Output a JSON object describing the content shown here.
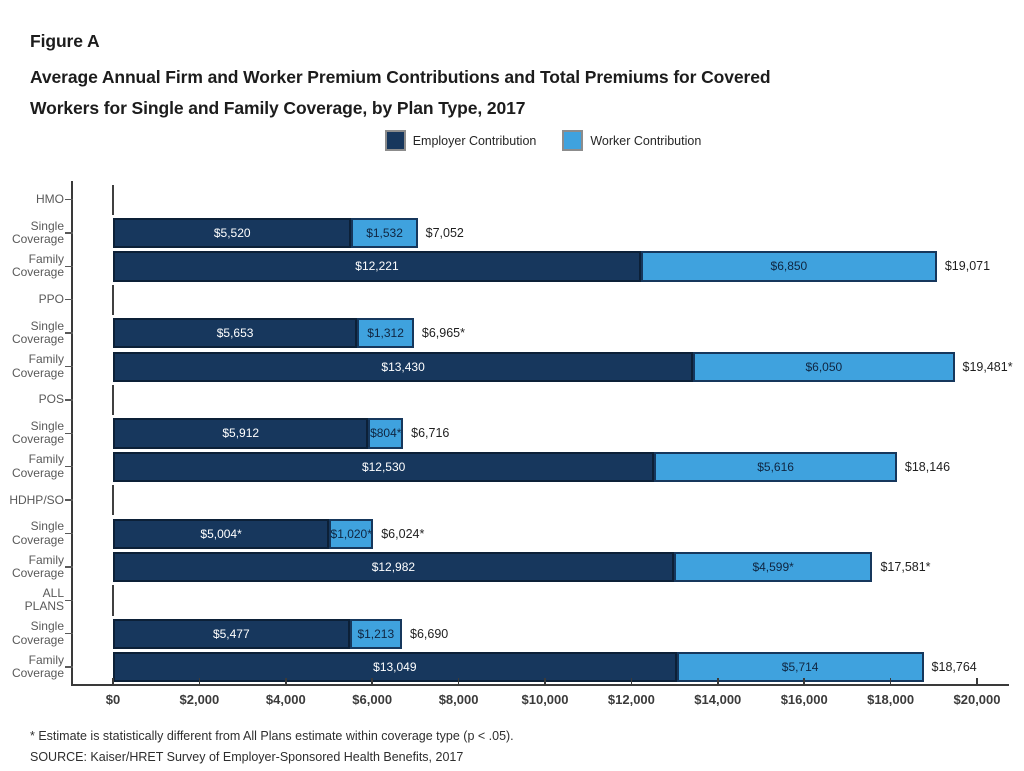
{
  "figure": {
    "label": "Figure A",
    "title_lines": [
      "Average Annual Firm and Worker Premium Contributions and Total Premiums for Covered",
      "Workers for Single and Family Coverage, by Plan Type, 2017"
    ]
  },
  "legend": {
    "items": [
      {
        "name": "employer",
        "label": "Employer Contribution",
        "color": "#17375d"
      },
      {
        "name": "worker",
        "label": "Worker Contribution",
        "color": "#3fa2de"
      }
    ]
  },
  "colors": {
    "employer_fill": "#17375d",
    "worker_fill": "#3fa2de",
    "axis": "#3a3a3a",
    "ylabel_text": "#595959"
  },
  "chart_data": {
    "type": "bar",
    "orientation": "horizontal",
    "stacked": true,
    "title": "Average Annual Firm and Worker Premium Contributions and Total Premiums for Covered Workers for Single and Family Coverage, by Plan Type, 2017",
    "xlabel": "",
    "ylabel": "",
    "xlim": [
      0,
      20000
    ],
    "grid": false,
    "legend_position": "top",
    "series_names": [
      "Employer Contribution",
      "Worker Contribution"
    ],
    "x_axis": {
      "min": 0,
      "max": 20000,
      "tick_interval": 2000,
      "tick_labels": [
        "$0",
        "$2,000",
        "$4,000",
        "$6,000",
        "$8,000",
        "$10,000",
        "$12,000",
        "$14,000",
        "$16,000",
        "$18,000",
        "$20,000"
      ]
    },
    "groups": [
      {
        "plan": "HMO",
        "plan_lines": [
          "HMO"
        ],
        "rows": [
          {
            "coverage_lines": [
              "Single",
              "Coverage"
            ],
            "employer": 5520,
            "worker": 1532,
            "total": 7052,
            "labels": {
              "employer": "$5,520",
              "worker": "$1,532",
              "total": "$7,052"
            }
          },
          {
            "coverage_lines": [
              "Family",
              "Coverage"
            ],
            "employer": 12221,
            "worker": 6850,
            "total": 19071,
            "labels": {
              "employer": "$12,221",
              "worker": "$6,850",
              "total": "$19,071"
            }
          }
        ]
      },
      {
        "plan": "PPO",
        "plan_lines": [
          "PPO"
        ],
        "rows": [
          {
            "coverage_lines": [
              "Single",
              "Coverage"
            ],
            "employer": 5653,
            "worker": 1312,
            "total": 6965,
            "labels": {
              "employer": "$5,653",
              "worker": "$1,312",
              "total": "$6,965*"
            }
          },
          {
            "coverage_lines": [
              "Family",
              "Coverage"
            ],
            "employer": 13430,
            "worker": 6050,
            "total": 19481,
            "labels": {
              "employer": "$13,430",
              "worker": "$6,050",
              "total": "$19,481*"
            }
          }
        ]
      },
      {
        "plan": "POS",
        "plan_lines": [
          "POS"
        ],
        "rows": [
          {
            "coverage_lines": [
              "Single",
              "Coverage"
            ],
            "employer": 5912,
            "worker": 804,
            "total": 6716,
            "labels": {
              "employer": "$5,912",
              "worker": "$804*",
              "total": "$6,716"
            }
          },
          {
            "coverage_lines": [
              "Family",
              "Coverage"
            ],
            "employer": 12530,
            "worker": 5616,
            "total": 18146,
            "labels": {
              "employer": "$12,530",
              "worker": "$5,616",
              "total": "$18,146"
            }
          }
        ]
      },
      {
        "plan": "HDHP/SO",
        "plan_lines": [
          "HDHP/SO"
        ],
        "rows": [
          {
            "coverage_lines": [
              "Single",
              "Coverage"
            ],
            "employer": 5004,
            "worker": 1020,
            "total": 6024,
            "labels": {
              "employer": "$5,004*",
              "worker": "$1,020*",
              "total": "$6,024*"
            }
          },
          {
            "coverage_lines": [
              "Family",
              "Coverage"
            ],
            "employer": 12982,
            "worker": 4599,
            "total": 17581,
            "labels": {
              "employer": "$12,982",
              "worker": "$4,599*",
              "total": "$17,581*"
            }
          }
        ]
      },
      {
        "plan": "ALL PLANS",
        "plan_lines": [
          "ALL",
          "PLANS"
        ],
        "rows": [
          {
            "coverage_lines": [
              "Single",
              "Coverage"
            ],
            "employer": 5477,
            "worker": 1213,
            "total": 6690,
            "labels": {
              "employer": "$5,477",
              "worker": "$1,213",
              "total": "$6,690"
            }
          },
          {
            "coverage_lines": [
              "Family",
              "Coverage"
            ],
            "employer": 13049,
            "worker": 5714,
            "total": 18764,
            "labels": {
              "employer": "$13,049",
              "worker": "$5,714",
              "total": "$18,764"
            }
          }
        ]
      }
    ]
  },
  "footnotes": [
    "* Estimate is statistically different from All Plans estimate within coverage type (p < .05).",
    "SOURCE: Kaiser/HRET Survey of Employer-Sponsored Health Benefits, 2017"
  ]
}
